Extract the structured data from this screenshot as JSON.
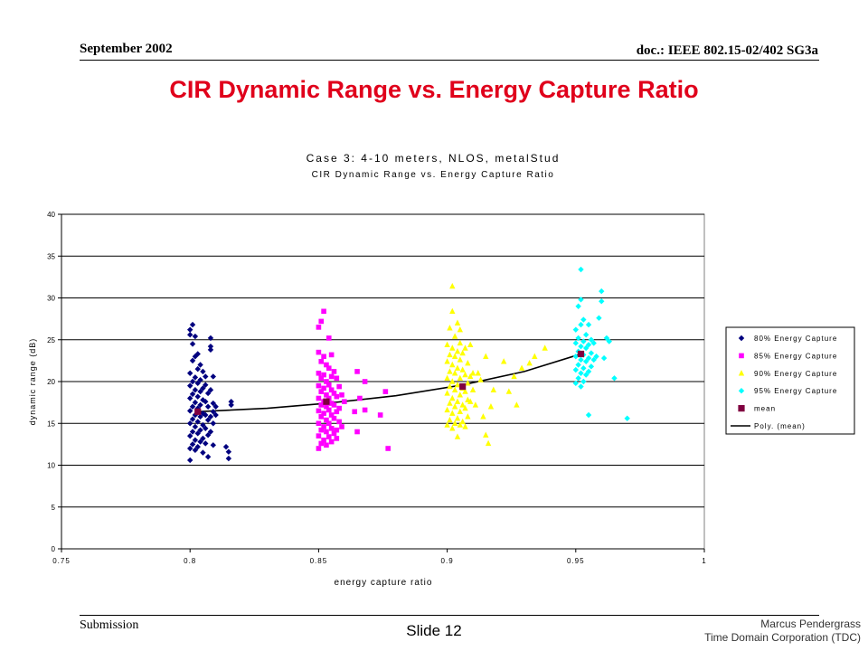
{
  "header": {
    "date": "September 2002",
    "doc": "doc.: IEEE 802.15-02/402 SG3a"
  },
  "slide": {
    "title": "CIR Dynamic Range vs. Energy Capture Ratio"
  },
  "footer": {
    "submission": "Submission",
    "slide_number": "Slide 12",
    "author": "Marcus Pendergrass",
    "org": "Time Domain Corporation (TDC)"
  },
  "colors": {
    "title": "#e0001b",
    "s80": "#00007f",
    "s85": "#ff00ff",
    "s90": "#ffff00",
    "s95": "#00ffff",
    "mean": "#800040",
    "fit": "#000000"
  },
  "chart_data": {
    "type": "scatter",
    "title": "Case 3:  4-10 meters, NLOS, metalStud",
    "subtitle": "CIR Dynamic Range vs. Energy Capture Ratio",
    "xlabel": "energy capture ratio",
    "ylabel": "dynamic range (dB)",
    "xlim": [
      0.75,
      1
    ],
    "ylim": [
      0,
      40
    ],
    "x_ticks": [
      "0.75",
      "0.8",
      "0.85",
      "0.9",
      "0.95",
      "1"
    ],
    "y_ticks": [
      "0",
      "5",
      "10",
      "15",
      "20",
      "25",
      "30",
      "35",
      "40"
    ],
    "grid": "horizontal",
    "legend_position": "right",
    "series": [
      {
        "name": "80% Energy Capture",
        "marker": "diamond",
        "points": [
          [
            0.8,
            10.6
          ],
          [
            0.8,
            12.0
          ],
          [
            0.8,
            13.5
          ],
          [
            0.8,
            15.0
          ],
          [
            0.8,
            16.5
          ],
          [
            0.8,
            18.0
          ],
          [
            0.8,
            19.5
          ],
          [
            0.8,
            21.0
          ],
          [
            0.8,
            25.6
          ],
          [
            0.8,
            26.2
          ],
          [
            0.801,
            12.5
          ],
          [
            0.801,
            14.0
          ],
          [
            0.801,
            15.5
          ],
          [
            0.801,
            17.0
          ],
          [
            0.801,
            18.5
          ],
          [
            0.801,
            20.0
          ],
          [
            0.801,
            22.5
          ],
          [
            0.801,
            24.5
          ],
          [
            0.801,
            26.8
          ],
          [
            0.802,
            11.8
          ],
          [
            0.802,
            13.0
          ],
          [
            0.802,
            14.6
          ],
          [
            0.802,
            16.0
          ],
          [
            0.802,
            17.5
          ],
          [
            0.802,
            19.0
          ],
          [
            0.802,
            20.5
          ],
          [
            0.802,
            23.0
          ],
          [
            0.802,
            25.4
          ],
          [
            0.803,
            12.2
          ],
          [
            0.803,
            13.8
          ],
          [
            0.803,
            15.2
          ],
          [
            0.803,
            16.8
          ],
          [
            0.803,
            18.2
          ],
          [
            0.803,
            19.8
          ],
          [
            0.803,
            21.5
          ],
          [
            0.803,
            23.3
          ],
          [
            0.804,
            12.8
          ],
          [
            0.804,
            14.2
          ],
          [
            0.804,
            15.8
          ],
          [
            0.804,
            17.2
          ],
          [
            0.804,
            18.8
          ],
          [
            0.804,
            20.2
          ],
          [
            0.804,
            22.0
          ],
          [
            0.805,
            11.5
          ],
          [
            0.805,
            13.2
          ],
          [
            0.805,
            14.8
          ],
          [
            0.805,
            16.2
          ],
          [
            0.805,
            17.8
          ],
          [
            0.805,
            19.2
          ],
          [
            0.805,
            21.2
          ],
          [
            0.806,
            12.6
          ],
          [
            0.806,
            14.4
          ],
          [
            0.806,
            16.0
          ],
          [
            0.806,
            17.6
          ],
          [
            0.806,
            19.6
          ],
          [
            0.806,
            20.6
          ],
          [
            0.807,
            13.6
          ],
          [
            0.807,
            15.4
          ],
          [
            0.807,
            17.0
          ],
          [
            0.807,
            18.6
          ],
          [
            0.807,
            11.0
          ],
          [
            0.808,
            14.0
          ],
          [
            0.808,
            15.8
          ],
          [
            0.808,
            19.0
          ],
          [
            0.808,
            23.8
          ],
          [
            0.808,
            24.2
          ],
          [
            0.808,
            25.2
          ],
          [
            0.809,
            15.0
          ],
          [
            0.809,
            16.4
          ],
          [
            0.809,
            17.4
          ],
          [
            0.809,
            20.6
          ],
          [
            0.809,
            12.4
          ],
          [
            0.81,
            16.0
          ],
          [
            0.81,
            17.0
          ],
          [
            0.814,
            12.2
          ],
          [
            0.815,
            10.8
          ],
          [
            0.815,
            11.6
          ],
          [
            0.816,
            17.2
          ],
          [
            0.816,
            17.6
          ]
        ]
      },
      {
        "name": "85% Energy Capture",
        "marker": "square",
        "points": [
          [
            0.85,
            12.0
          ],
          [
            0.85,
            13.5
          ],
          [
            0.85,
            15.0
          ],
          [
            0.85,
            16.5
          ],
          [
            0.85,
            18.0
          ],
          [
            0.85,
            19.5
          ],
          [
            0.85,
            21.0
          ],
          [
            0.85,
            23.5
          ],
          [
            0.85,
            26.5
          ],
          [
            0.851,
            12.6
          ],
          [
            0.851,
            14.2
          ],
          [
            0.851,
            15.8
          ],
          [
            0.851,
            17.2
          ],
          [
            0.851,
            18.8
          ],
          [
            0.851,
            20.4
          ],
          [
            0.851,
            22.4
          ],
          [
            0.851,
            27.2
          ],
          [
            0.852,
            13.0
          ],
          [
            0.852,
            14.6
          ],
          [
            0.852,
            16.2
          ],
          [
            0.852,
            17.6
          ],
          [
            0.852,
            19.2
          ],
          [
            0.852,
            20.8
          ],
          [
            0.852,
            23.0
          ],
          [
            0.852,
            28.4
          ],
          [
            0.853,
            12.4
          ],
          [
            0.853,
            14.0
          ],
          [
            0.853,
            15.4
          ],
          [
            0.853,
            17.0
          ],
          [
            0.853,
            18.4
          ],
          [
            0.853,
            20.0
          ],
          [
            0.853,
            22.0
          ],
          [
            0.854,
            13.4
          ],
          [
            0.854,
            15.0
          ],
          [
            0.854,
            16.6
          ],
          [
            0.854,
            18.0
          ],
          [
            0.854,
            19.6
          ],
          [
            0.854,
            21.6
          ],
          [
            0.854,
            25.2
          ],
          [
            0.855,
            12.8
          ],
          [
            0.855,
            14.4
          ],
          [
            0.855,
            16.0
          ],
          [
            0.855,
            17.4
          ],
          [
            0.855,
            19.0
          ],
          [
            0.855,
            20.6
          ],
          [
            0.855,
            23.2
          ],
          [
            0.856,
            13.8
          ],
          [
            0.856,
            15.6
          ],
          [
            0.856,
            17.2
          ],
          [
            0.856,
            18.6
          ],
          [
            0.856,
            21.2
          ],
          [
            0.857,
            14.2
          ],
          [
            0.857,
            16.4
          ],
          [
            0.857,
            18.2
          ],
          [
            0.857,
            20.4
          ],
          [
            0.857,
            13.2
          ],
          [
            0.858,
            15.2
          ],
          [
            0.858,
            16.8
          ],
          [
            0.858,
            19.4
          ],
          [
            0.859,
            14.6
          ],
          [
            0.859,
            18.4
          ],
          [
            0.86,
            17.6
          ],
          [
            0.864,
            16.4
          ],
          [
            0.865,
            14.0
          ],
          [
            0.865,
            21.2
          ],
          [
            0.866,
            18.0
          ],
          [
            0.868,
            16.6
          ],
          [
            0.868,
            20.0
          ],
          [
            0.874,
            16.0
          ],
          [
            0.876,
            18.8
          ],
          [
            0.877,
            12.0
          ]
        ]
      },
      {
        "name": "90% Energy Capture",
        "marker": "triangle",
        "points": [
          [
            0.9,
            14.8
          ],
          [
            0.9,
            16.6
          ],
          [
            0.9,
            18.6
          ],
          [
            0.9,
            20.4
          ],
          [
            0.9,
            22.4
          ],
          [
            0.9,
            24.4
          ],
          [
            0.901,
            15.4
          ],
          [
            0.901,
            17.4
          ],
          [
            0.901,
            19.4
          ],
          [
            0.901,
            21.2
          ],
          [
            0.901,
            23.2
          ],
          [
            0.901,
            26.4
          ],
          [
            0.902,
            14.4
          ],
          [
            0.902,
            16.2
          ],
          [
            0.902,
            18.0
          ],
          [
            0.902,
            20.0
          ],
          [
            0.902,
            22.0
          ],
          [
            0.902,
            24.0
          ],
          [
            0.902,
            28.4
          ],
          [
            0.902,
            31.4
          ],
          [
            0.903,
            15.0
          ],
          [
            0.903,
            17.0
          ],
          [
            0.903,
            19.0
          ],
          [
            0.903,
            21.0
          ],
          [
            0.903,
            23.0
          ],
          [
            0.903,
            25.4
          ],
          [
            0.904,
            13.4
          ],
          [
            0.904,
            15.6
          ],
          [
            0.904,
            17.6
          ],
          [
            0.904,
            19.6
          ],
          [
            0.904,
            21.6
          ],
          [
            0.904,
            23.6
          ],
          [
            0.904,
            27.0
          ],
          [
            0.905,
            14.8
          ],
          [
            0.905,
            16.4
          ],
          [
            0.905,
            18.4
          ],
          [
            0.905,
            20.4
          ],
          [
            0.905,
            22.6
          ],
          [
            0.905,
            24.6
          ],
          [
            0.905,
            26.2
          ],
          [
            0.906,
            15.2
          ],
          [
            0.906,
            17.2
          ],
          [
            0.906,
            19.2
          ],
          [
            0.906,
            21.4
          ],
          [
            0.906,
            23.4
          ],
          [
            0.907,
            14.6
          ],
          [
            0.907,
            16.8
          ],
          [
            0.907,
            18.8
          ],
          [
            0.907,
            20.8
          ],
          [
            0.907,
            24.0
          ],
          [
            0.908,
            15.8
          ],
          [
            0.908,
            17.8
          ],
          [
            0.908,
            19.8
          ],
          [
            0.908,
            22.2
          ],
          [
            0.909,
            17.6
          ],
          [
            0.909,
            20.6
          ],
          [
            0.909,
            24.4
          ],
          [
            0.91,
            19.0
          ],
          [
            0.91,
            21.0
          ],
          [
            0.911,
            17.2
          ],
          [
            0.912,
            21.0
          ],
          [
            0.913,
            20.2
          ],
          [
            0.914,
            15.8
          ],
          [
            0.915,
            23.0
          ],
          [
            0.915,
            13.6
          ],
          [
            0.916,
            12.6
          ],
          [
            0.917,
            17.0
          ],
          [
            0.918,
            19.0
          ],
          [
            0.922,
            22.4
          ],
          [
            0.924,
            18.8
          ],
          [
            0.926,
            20.6
          ],
          [
            0.927,
            17.2
          ],
          [
            0.929,
            21.6
          ],
          [
            0.932,
            22.2
          ],
          [
            0.934,
            23.0
          ],
          [
            0.938,
            24.0
          ]
        ]
      },
      {
        "name": "95% Energy Capture",
        "marker": "diamond",
        "points": [
          [
            0.95,
            19.8
          ],
          [
            0.95,
            21.4
          ],
          [
            0.95,
            23.0
          ],
          [
            0.95,
            24.6
          ],
          [
            0.95,
            26.2
          ],
          [
            0.951,
            20.4
          ],
          [
            0.951,
            22.0
          ],
          [
            0.951,
            23.6
          ],
          [
            0.951,
            25.2
          ],
          [
            0.951,
            29.0
          ],
          [
            0.952,
            19.4
          ],
          [
            0.952,
            21.0
          ],
          [
            0.952,
            22.6
          ],
          [
            0.952,
            24.2
          ],
          [
            0.952,
            26.8
          ],
          [
            0.952,
            29.8
          ],
          [
            0.952,
            33.4
          ],
          [
            0.953,
            20.0
          ],
          [
            0.953,
            21.6
          ],
          [
            0.953,
            23.2
          ],
          [
            0.953,
            24.8
          ],
          [
            0.953,
            27.4
          ],
          [
            0.954,
            20.8
          ],
          [
            0.954,
            22.4
          ],
          [
            0.954,
            24.0
          ],
          [
            0.954,
            25.6
          ],
          [
            0.955,
            16.0
          ],
          [
            0.955,
            21.2
          ],
          [
            0.955,
            22.8
          ],
          [
            0.955,
            24.4
          ],
          [
            0.955,
            26.8
          ],
          [
            0.956,
            21.8
          ],
          [
            0.956,
            23.4
          ],
          [
            0.956,
            25.0
          ],
          [
            0.957,
            22.6
          ],
          [
            0.957,
            24.6
          ],
          [
            0.958,
            23.0
          ],
          [
            0.959,
            27.6
          ],
          [
            0.96,
            29.6
          ],
          [
            0.96,
            30.8
          ],
          [
            0.961,
            22.8
          ],
          [
            0.962,
            25.2
          ],
          [
            0.963,
            24.8
          ],
          [
            0.965,
            20.4
          ],
          [
            0.97,
            15.6
          ]
        ]
      },
      {
        "name": "mean",
        "marker": "square",
        "points": [
          [
            0.803,
            16.4
          ],
          [
            0.853,
            17.6
          ],
          [
            0.906,
            19.4
          ],
          [
            0.952,
            23.3
          ]
        ]
      },
      {
        "name": "Poly. (mean)",
        "marker": "line",
        "points": [
          [
            0.803,
            16.4
          ],
          [
            0.83,
            16.8
          ],
          [
            0.853,
            17.4
          ],
          [
            0.88,
            18.3
          ],
          [
            0.906,
            19.6
          ],
          [
            0.93,
            21.2
          ],
          [
            0.952,
            23.3
          ]
        ]
      }
    ]
  }
}
